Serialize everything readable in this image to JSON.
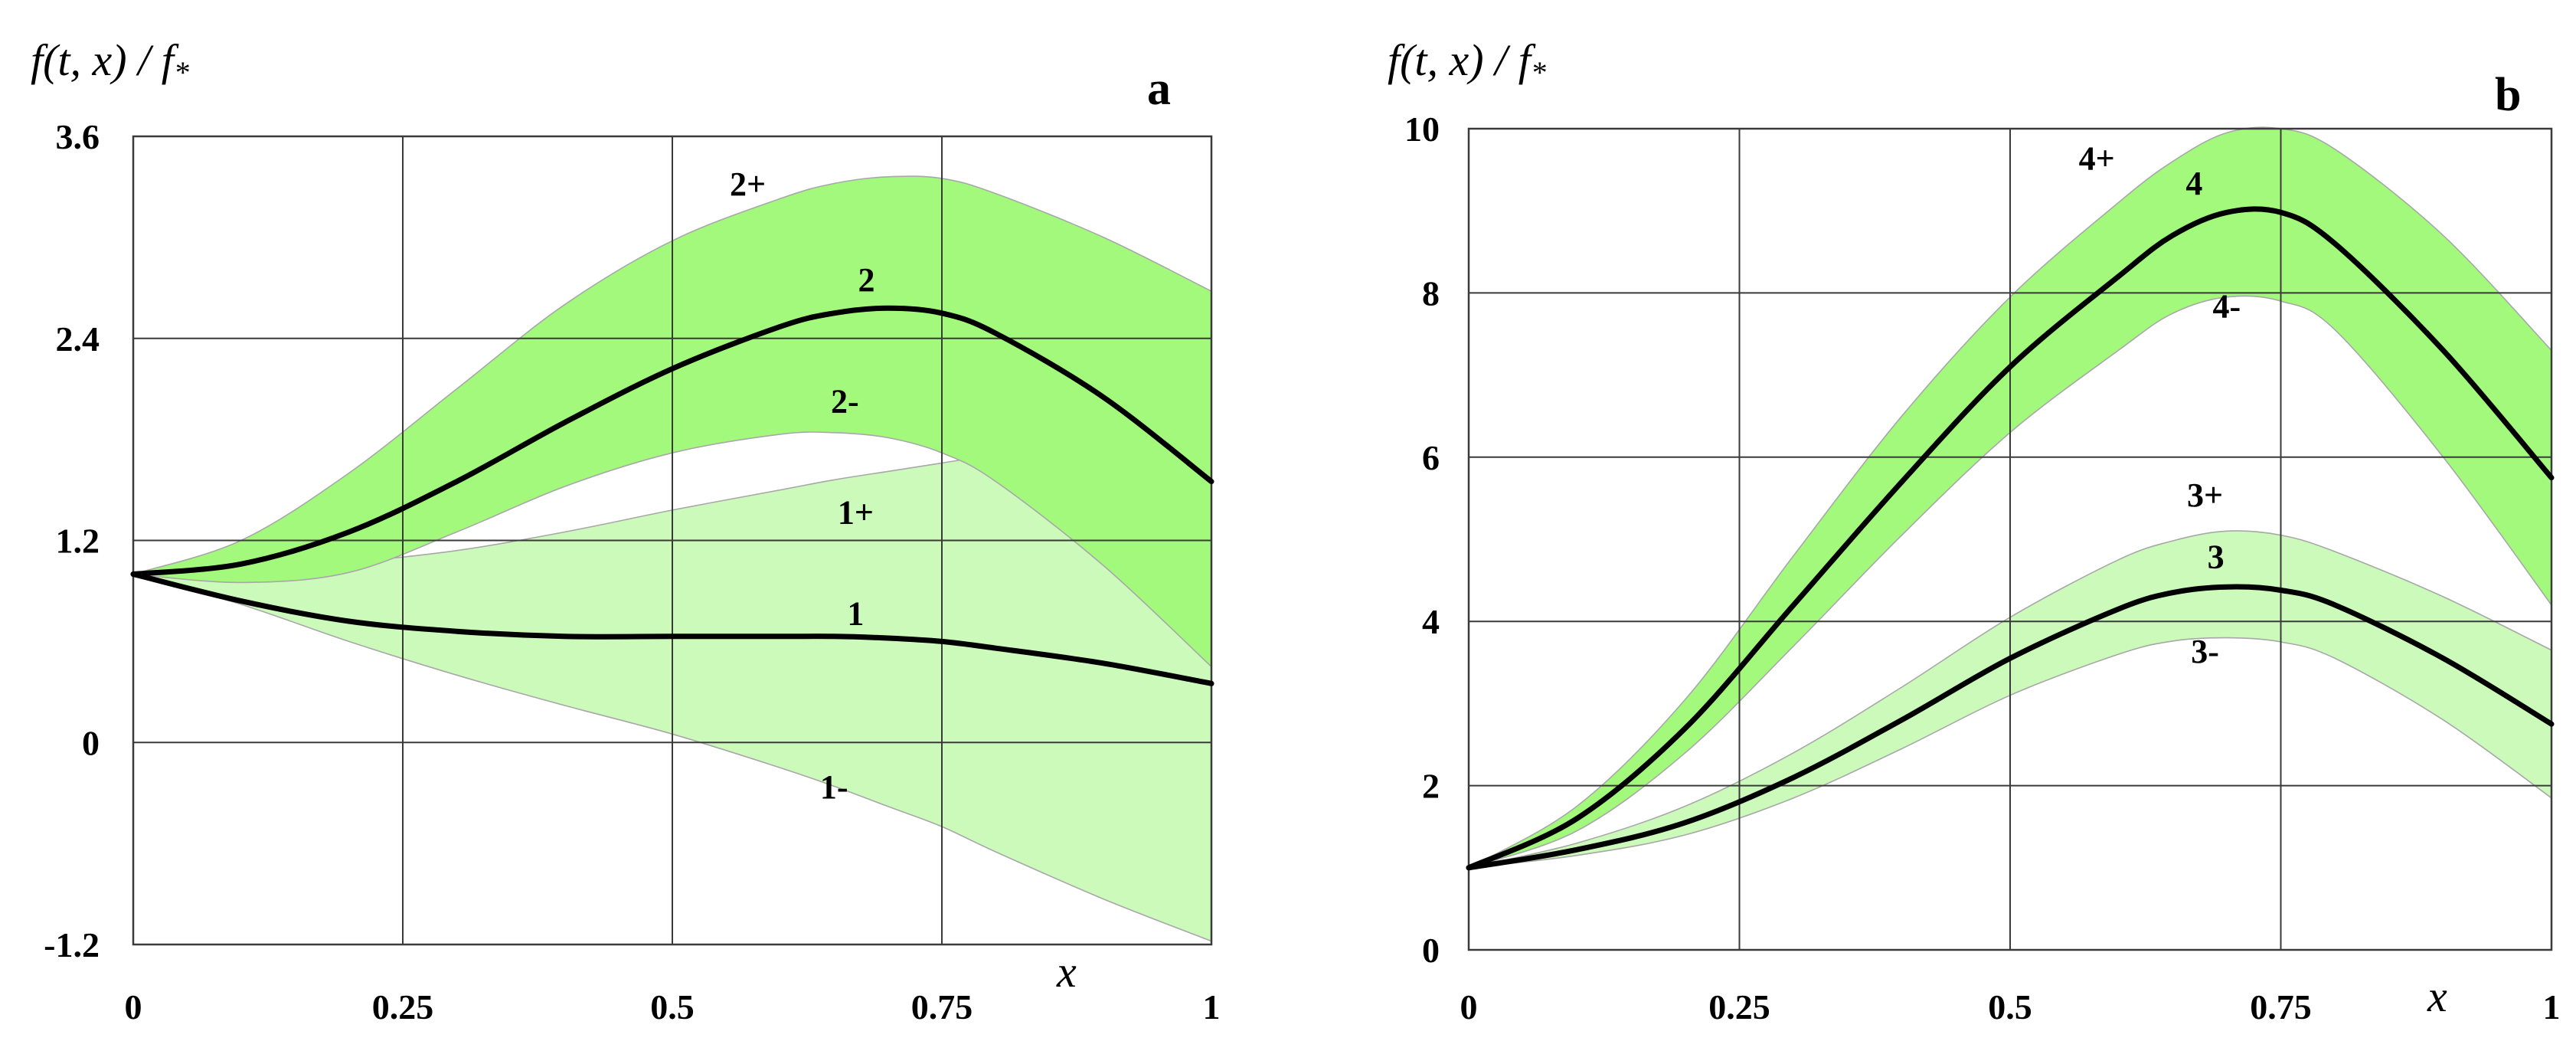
{
  "chart_data": [
    {
      "type": "area",
      "panel": "a",
      "ylabel": "f(t, x) / f*",
      "xlabel": "x",
      "xlim": [
        0,
        1
      ],
      "ylim": [
        -1.2,
        3.6
      ],
      "x_ticks": [
        0,
        0.25,
        0.5,
        0.75,
        1
      ],
      "x_tick_labels": [
        "0",
        "0.25",
        "0.5",
        "0.75",
        "1"
      ],
      "y_ticks": [
        -1.2,
        0,
        1.2,
        2.4,
        3.6
      ],
      "y_tick_labels": [
        "-1.2",
        "0",
        "1.2",
        "2.4",
        "3.6"
      ],
      "grid": true,
      "x": [
        0,
        0.1,
        0.2,
        0.3,
        0.4,
        0.5,
        0.6,
        0.65,
        0.7,
        0.75,
        0.8,
        0.9,
        1.0
      ],
      "bands": [
        {
          "name": "1",
          "upper_label": "1+",
          "lower_label": "1-",
          "color": "#ccfabb",
          "mean": [
            1.0,
            0.84,
            0.72,
            0.66,
            0.63,
            0.63,
            0.63,
            0.63,
            0.62,
            0.6,
            0.56,
            0.47,
            0.35
          ],
          "upper": [
            1.0,
            1.02,
            1.07,
            1.14,
            1.25,
            1.38,
            1.5,
            1.56,
            1.61,
            1.66,
            1.71,
            1.8,
            1.88
          ],
          "lower": [
            1.0,
            0.82,
            0.6,
            0.4,
            0.22,
            0.05,
            -0.15,
            -0.26,
            -0.38,
            -0.5,
            -0.65,
            -0.93,
            -1.18
          ]
        },
        {
          "name": "2",
          "upper_label": "2+",
          "lower_label": "2-",
          "color": "#a2f97b",
          "mean": [
            1.0,
            1.06,
            1.25,
            1.55,
            1.9,
            2.22,
            2.47,
            2.55,
            2.58,
            2.55,
            2.43,
            2.05,
            1.55
          ],
          "upper": [
            1.0,
            1.2,
            1.6,
            2.1,
            2.6,
            2.98,
            3.23,
            3.32,
            3.36,
            3.35,
            3.26,
            3.0,
            2.68
          ],
          "lower": [
            1.0,
            0.95,
            1.01,
            1.25,
            1.52,
            1.72,
            1.83,
            1.84,
            1.81,
            1.72,
            1.55,
            1.05,
            0.45
          ]
        }
      ],
      "label_positions": {
        "2+": [
          0.57,
          3.25
        ],
        "2": [
          0.68,
          2.68
        ],
        "2-": [
          0.66,
          1.96
        ],
        "1+": [
          0.67,
          1.3
        ],
        "1": [
          0.67,
          0.7
        ],
        "1-": [
          0.65,
          -0.33
        ]
      }
    },
    {
      "type": "area",
      "panel": "b",
      "ylabel": "f(t, x) / f*",
      "xlabel": "x",
      "xlim": [
        0,
        1
      ],
      "ylim": [
        0,
        10
      ],
      "x_ticks": [
        0,
        0.25,
        0.5,
        0.75,
        1
      ],
      "x_tick_labels": [
        "0",
        "0.25",
        "0.5",
        "0.75",
        "1"
      ],
      "y_ticks": [
        0,
        2,
        4,
        6,
        8,
        10
      ],
      "y_tick_labels": [
        "0",
        "2",
        "4",
        "6",
        "8",
        "10"
      ],
      "grid": true,
      "x": [
        0,
        0.1,
        0.2,
        0.3,
        0.4,
        0.5,
        0.6,
        0.65,
        0.7,
        0.75,
        0.8,
        0.9,
        1.0
      ],
      "bands": [
        {
          "name": "3",
          "upper_label": "3+",
          "lower_label": "3-",
          "color": "#ccfabb",
          "mean": [
            1.0,
            1.22,
            1.55,
            2.1,
            2.8,
            3.55,
            4.15,
            4.35,
            4.42,
            4.38,
            4.2,
            3.55,
            2.75
          ],
          "upper": [
            1.0,
            1.3,
            1.75,
            2.4,
            3.2,
            4.05,
            4.75,
            4.98,
            5.1,
            5.05,
            4.85,
            4.3,
            3.65
          ],
          "lower": [
            1.0,
            1.15,
            1.4,
            1.85,
            2.45,
            3.1,
            3.6,
            3.76,
            3.8,
            3.75,
            3.55,
            2.8,
            1.85
          ]
        },
        {
          "name": "4",
          "upper_label": "4+",
          "lower_label": "4-",
          "color": "#a2f97b",
          "mean": [
            1.0,
            1.6,
            2.7,
            4.2,
            5.7,
            7.1,
            8.2,
            8.7,
            8.98,
            8.98,
            8.6,
            7.3,
            5.75
          ],
          "upper": [
            1.0,
            1.75,
            3.05,
            4.8,
            6.5,
            7.95,
            9.1,
            9.6,
            9.95,
            10.0,
            9.75,
            8.7,
            7.3
          ],
          "lower": [
            1.0,
            1.45,
            2.4,
            3.7,
            5.05,
            6.3,
            7.3,
            7.75,
            7.95,
            7.9,
            7.55,
            6.0,
            4.2
          ]
        }
      ],
      "label_positions": {
        "4+": [
          0.58,
          9.5
        ],
        "4": [
          0.67,
          9.2
        ],
        "4-": [
          0.7,
          7.7
        ],
        "3+": [
          0.68,
          5.4
        ],
        "3": [
          0.69,
          4.65
        ],
        "3-": [
          0.68,
          3.5
        ]
      }
    }
  ],
  "panels": [
    {
      "letter": "a",
      "ylabel_main": "f(t, x) / f",
      "ylabel_sub": "*",
      "xlabel": "x"
    },
    {
      "letter": "b",
      "ylabel_main": "f(t, x) / f",
      "ylabel_sub": "*",
      "xlabel": "x"
    }
  ]
}
